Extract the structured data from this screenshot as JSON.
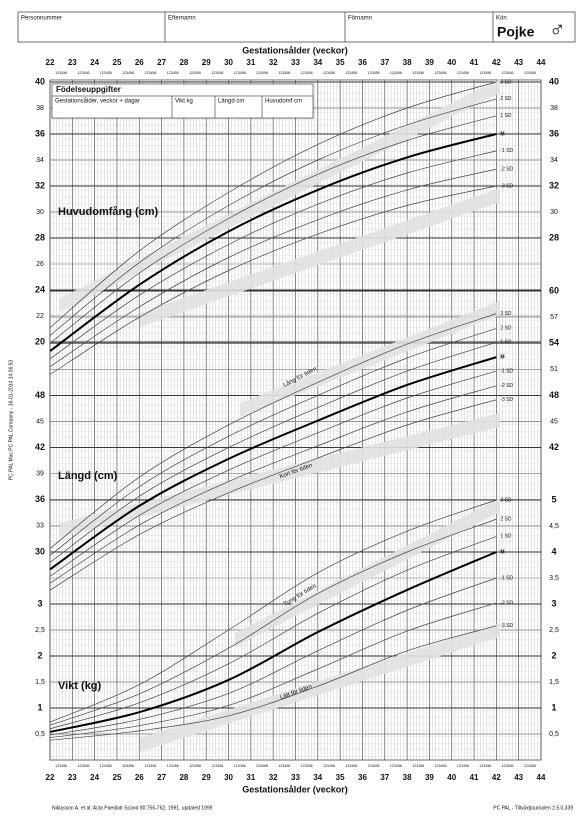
{
  "header": {
    "fields": [
      "Personnummer",
      "Efternamn",
      "Förnamn",
      "Kön"
    ],
    "sex": "Pojke",
    "sex_symbol": "♂"
  },
  "birth_box": {
    "title": "Födelseuppgifter",
    "columns": [
      "Gestationsålder, veckor + dagar",
      "Vikt kg",
      "Längd cm",
      "Huvudomf cm"
    ]
  },
  "side_text": "PC PAL Mac PC PAL Company - 16-01-2014 14:06:53",
  "footer": {
    "left": "Niklasson A, et al; Acta Paediatr Scand 80;756-762, 1991, updated 1999",
    "right": "PC PAL - Tillväxtjournalen 2.5.0.339"
  },
  "band_labels": [
    "Lång för tiden",
    "Kort för tiden",
    "Tung för tiden",
    "Lätt för tiden"
  ],
  "chart_data": {
    "type": "line",
    "xlabel": "Gestationsålder (veckor)",
    "xlim": [
      22,
      44
    ],
    "xticks": [
      22,
      23,
      24,
      25,
      26,
      27,
      28,
      29,
      30,
      31,
      32,
      33,
      34,
      35,
      36,
      37,
      38,
      39,
      40,
      41,
      42,
      43,
      44
    ],
    "day_labels": "123456",
    "panels": [
      {
        "label": "Huvudomfång (cm)",
        "ylim": [
          20,
          40
        ],
        "left_ticks": [
          40,
          38,
          36,
          34,
          32,
          30,
          28,
          26,
          24,
          22,
          20
        ],
        "right_ticks": [
          40,
          38,
          36,
          34,
          32,
          30,
          28
        ],
        "x": [
          22,
          26,
          30,
          34,
          38,
          42
        ],
        "series": [
          {
            "name": "3 SD",
            "values": [
              21.1,
              27.0,
              31.5,
              35.2,
              38.0,
              40.0
            ]
          },
          {
            "name": "2 SD",
            "values": [
              20.5,
              26.1,
              30.5,
              34.0,
              36.7,
              38.7
            ]
          },
          {
            "name": "1 SD",
            "values": [
              19.9,
              25.3,
              29.5,
              32.9,
              35.5,
              37.4
            ]
          },
          {
            "name": "M",
            "values": [
              19.3,
              24.4,
              28.5,
              31.7,
              34.2,
              36.0
            ]
          },
          {
            "name": "-1 SD",
            "values": [
              18.7,
              23.6,
              27.5,
              30.6,
              33.0,
              34.7
            ]
          },
          {
            "name": "-2 SD",
            "values": [
              18.1,
              22.7,
              26.5,
              29.4,
              31.7,
              33.3
            ]
          },
          {
            "name": "-3 SD",
            "values": [
              17.5,
              21.9,
              25.5,
              28.3,
              30.5,
              32.0
            ]
          }
        ]
      },
      {
        "label": "Längd (cm)",
        "ylim": [
          30,
          60
        ],
        "left_ticks": [
          48,
          45,
          42,
          39,
          36,
          33,
          30
        ],
        "right_ticks": [
          60,
          57,
          54,
          51,
          48,
          45,
          42
        ],
        "x": [
          22,
          26,
          30,
          34,
          38,
          42
        ],
        "series": [
          {
            "name": "3 SD",
            "values": [
              30.4,
              38.6,
              44.6,
              49.5,
              53.9,
              57.4
            ]
          },
          {
            "name": "2 SD",
            "values": [
              29.6,
              37.5,
              43.3,
              48.0,
              52.3,
              55.7
            ]
          },
          {
            "name": "1 SD",
            "values": [
              28.8,
              36.4,
              42.0,
              46.6,
              50.8,
              54.1
            ]
          },
          {
            "name": "M",
            "values": [
              28.0,
              35.3,
              40.7,
              45.1,
              49.2,
              52.4
            ]
          },
          {
            "name": "-1 SD",
            "values": [
              27.2,
              34.2,
              39.4,
              43.7,
              47.7,
              50.8
            ]
          },
          {
            "name": "-2 SD",
            "values": [
              26.4,
              33.1,
              38.1,
              42.2,
              46.1,
              49.1
            ]
          },
          {
            "name": "-3 SD",
            "values": [
              25.6,
              32.0,
              36.8,
              40.8,
              44.6,
              47.5
            ]
          }
        ]
      },
      {
        "label": "Vikt (kg)",
        "ylim": [
          0,
          5
        ],
        "left_ticks": [
          3,
          {
            "value": 2.5,
            "label": "2,5"
          },
          2,
          {
            "value": 1.5,
            "label": "1,5"
          },
          1,
          {
            "value": 0.5,
            "label": "0,5"
          }
        ],
        "right_ticks": [
          5,
          {
            "value": 4.5,
            "label": "4,5"
          },
          4,
          {
            "value": 3.5,
            "label": "3,5"
          },
          3,
          {
            "value": 2.5,
            "label": "2,5"
          },
          2,
          {
            "value": 1.5,
            "label": "1,5"
          },
          1,
          {
            "value": 0.5,
            "label": "0,5"
          }
        ],
        "x": [
          22,
          26,
          30,
          34,
          38,
          42
        ],
        "series": [
          {
            "name": "3 SD",
            "values": [
              0.73,
              1.45,
              2.5,
              3.6,
              4.4,
              5.0
            ]
          },
          {
            "name": "2 SD",
            "values": [
              0.67,
              1.27,
              2.15,
              3.2,
              4.0,
              4.63
            ]
          },
          {
            "name": "1 SD",
            "values": [
              0.6,
              1.1,
              1.85,
              2.82,
              3.65,
              4.3
            ]
          },
          {
            "name": "M",
            "values": [
              0.54,
              0.92,
              1.54,
              2.46,
              3.27,
              4.0
            ]
          },
          {
            "name": "-1 SD",
            "values": [
              0.48,
              0.78,
              1.28,
              2.1,
              2.88,
              3.5
            ]
          },
          {
            "name": "-2 SD",
            "values": [
              0.43,
              0.66,
              1.05,
              1.75,
              2.48,
              3.02
            ]
          },
          {
            "name": "-3 SD",
            "values": [
              0.38,
              0.56,
              0.85,
              1.42,
              2.1,
              2.58
            ]
          }
        ]
      }
    ]
  }
}
